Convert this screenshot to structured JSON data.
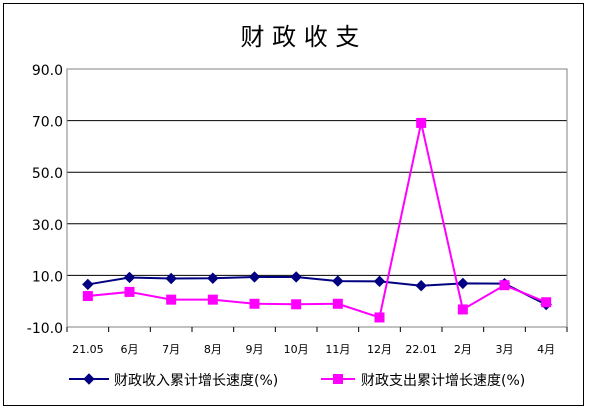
{
  "chart_data": {
    "type": "line",
    "title": "财 政 收 支",
    "categories": [
      "21.05",
      "6月",
      "7月",
      "8月",
      "9月",
      "10月",
      "11月",
      "12月",
      "22.01",
      "2月",
      "3月",
      "4月"
    ],
    "series": [
      {
        "name": "财政收入累计增长速度(%)",
        "color": "#000080",
        "marker": "diamond",
        "values": [
          6.5,
          9.2,
          8.8,
          8.9,
          9.4,
          9.4,
          7.8,
          7.7,
          6.0,
          6.9,
          6.8,
          -1.3
        ]
      },
      {
        "name": "财政支出累计增长速度(%)",
        "color": "#ff00ff",
        "marker": "square",
        "values": [
          2.0,
          3.6,
          0.6,
          0.6,
          -1.0,
          -1.2,
          -1.0,
          -6.3,
          69.1,
          -3.2,
          6.2,
          -0.4
        ]
      }
    ],
    "y_ticks": [
      "-10.0",
      "10.0",
      "30.0",
      "50.0",
      "70.0",
      "90.0"
    ],
    "ylim": [
      -10,
      90
    ],
    "grid": true,
    "legend": "bottom"
  }
}
